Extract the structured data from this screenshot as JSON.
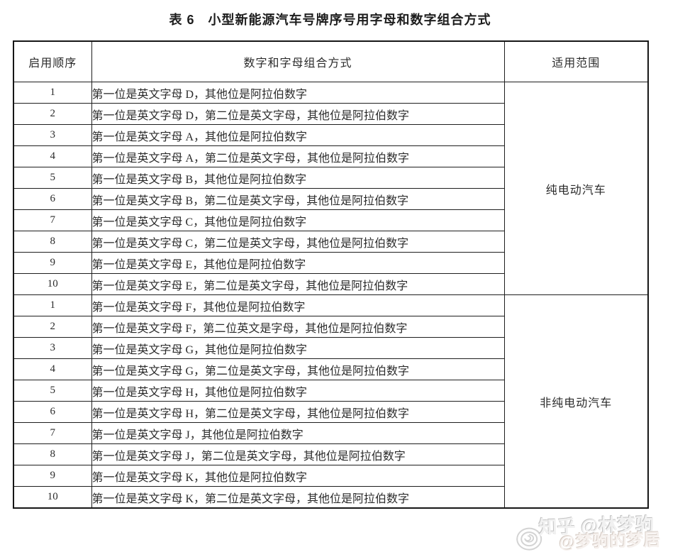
{
  "title": "表 6　小型新能源汽车号牌序号用字母和数字组合方式",
  "table": {
    "headers": {
      "order": "启用顺序",
      "combination": "数字和字母组合方式",
      "scope": "适用范围"
    },
    "groups": [
      {
        "scope": "纯电动汽车",
        "rows": [
          {
            "order": "1",
            "combination": "第一位是英文字母 D，其他位是阿拉伯数字"
          },
          {
            "order": "2",
            "combination": "第一位是英文字母 D，第二位是英文字母，其他位是阿拉伯数字"
          },
          {
            "order": "3",
            "combination": "第一位是英文字母 A，其他位是阿拉伯数字"
          },
          {
            "order": "4",
            "combination": "第一位是英文字母 A，第二位是英文字母，其他位是阿拉伯数字"
          },
          {
            "order": "5",
            "combination": "第一位是英文字母 B，其他位是阿拉伯数字"
          },
          {
            "order": "6",
            "combination": "第一位是英文字母 B，第二位是英文字母，其他位是阿拉伯数字"
          },
          {
            "order": "7",
            "combination": "第一位是英文字母 C，其他位是阿拉伯数字"
          },
          {
            "order": "8",
            "combination": "第一位是英文字母 C，第二位是英文字母，其他位是阿拉伯数字"
          },
          {
            "order": "9",
            "combination": "第一位是英文字母 E，其他位是阿拉伯数字"
          },
          {
            "order": "10",
            "combination": "第一位是英文字母 E，第二位是英文字母，其他位是阿拉伯数字"
          }
        ]
      },
      {
        "scope": "非纯电动汽车",
        "rows": [
          {
            "order": "1",
            "combination": "第一位是英文字母 F，其他位是阿拉伯数字"
          },
          {
            "order": "2",
            "combination": "第一位是英文字母 F，第二位英文是字母，其他位是阿拉伯数字"
          },
          {
            "order": "3",
            "combination": "第一位是英文字母 G，其他位是阿拉伯数字"
          },
          {
            "order": "4",
            "combination": "第一位是英文字母 G，第二位是英文字母，其他位是阿拉伯数字"
          },
          {
            "order": "5",
            "combination": "第一位是英文字母 H，其他位是阿拉伯数字"
          },
          {
            "order": "6",
            "combination": "第一位是英文字母 H，第二位是英文字母，其他位是阿拉伯数字"
          },
          {
            "order": "7",
            "combination": "第一位是英文字母 J，其他位是阿拉伯数字"
          },
          {
            "order": "8",
            "combination": "第一位是英文字母 J，第二位是英文字母，其他位是阿拉伯数字"
          },
          {
            "order": "9",
            "combination": "第一位是英文字母 K，其他位是阿拉伯数字"
          },
          {
            "order": "10",
            "combination": "第一位是英文字母 K，第二位是英文字母，其他位是阿拉伯数字"
          }
        ]
      }
    ]
  },
  "watermark": {
    "primary": "知乎 @林梦驹",
    "secondary": "@梦驹的梦居",
    "logo": "zhihu-swirl-logo"
  },
  "colors": {
    "border": "#1e1e1e",
    "text": "#2b2b2b",
    "watermark_gray": "#c2c2c2",
    "background": "#ffffff"
  }
}
